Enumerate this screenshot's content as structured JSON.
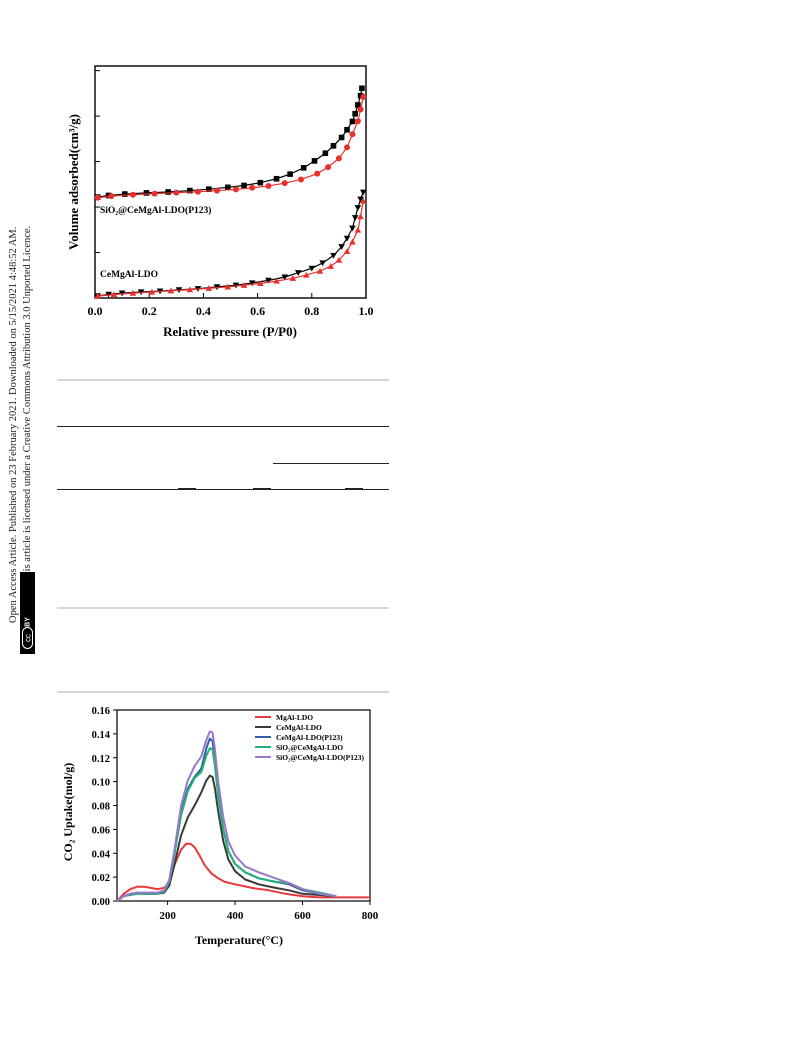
{
  "sidebar": {
    "line1": "Open Access Article. Published on 23 February 2021. Downloaded on 5/15/2021 4:48:52 AM.",
    "line2": "This article is licensed under a Creative Commons Attribution 3.0 Unported Licence.",
    "badge_cc": "cc",
    "badge_by": "BY"
  },
  "chart_data": [
    {
      "type": "scatter",
      "xlabel": "Relative pressure (P/P0)",
      "ylabel": "Volume adsorbed(cm³/g)",
      "xlim": [
        0.0,
        1.0
      ],
      "xticks": [
        "0.0",
        "0.2",
        "0.4",
        "0.6",
        "0.8",
        "1.0"
      ],
      "ylim": [
        0,
        100
      ],
      "grid": false,
      "annotations": [
        "SiO₂@CeMgAl-LDO(P123)",
        "CeMgAl-LDO"
      ],
      "series": [
        {
          "group": "SiO2@CeMgAl-LDO(P123)",
          "branch": "desorption",
          "color": "#000000",
          "marker": "square",
          "x": [
            0.01,
            0.05,
            0.11,
            0.19,
            0.27,
            0.35,
            0.42,
            0.49,
            0.55,
            0.61,
            0.67,
            0.72,
            0.77,
            0.81,
            0.85,
            0.88,
            0.91,
            0.93,
            0.95,
            0.96,
            0.97,
            0.98,
            0.985
          ],
          "y": [
            43.5,
            44.2,
            44.8,
            45.3,
            45.7,
            46.3,
            46.9,
            47.7,
            48.5,
            49.7,
            51.4,
            53.4,
            56.1,
            59.1,
            62.4,
            65.6,
            69.2,
            72.5,
            76.1,
            79.4,
            83.2,
            87.2,
            90.4
          ]
        },
        {
          "group": "SiO2@CeMgAl-LDO(P123)",
          "branch": "adsorption",
          "color": "#e8312d",
          "marker": "circle",
          "x": [
            0.01,
            0.06,
            0.14,
            0.22,
            0.3,
            0.38,
            0.45,
            0.52,
            0.58,
            0.64,
            0.7,
            0.76,
            0.82,
            0.86,
            0.9,
            0.93,
            0.95,
            0.97,
            0.98,
            0.99
          ],
          "y": [
            43.2,
            43.9,
            44.5,
            45.0,
            45.4,
            45.8,
            46.3,
            46.8,
            47.5,
            48.3,
            49.5,
            51.1,
            53.6,
            56.4,
            60.2,
            64.9,
            70.6,
            76.2,
            81.3,
            86.7
          ]
        },
        {
          "group": "CeMgAl-LDO",
          "branch": "desorption",
          "color": "#000000",
          "marker": "triangle-down",
          "x": [
            0.01,
            0.05,
            0.1,
            0.17,
            0.24,
            0.31,
            0.38,
            0.45,
            0.52,
            0.58,
            0.64,
            0.7,
            0.75,
            0.8,
            0.84,
            0.88,
            0.91,
            0.93,
            0.95,
            0.96,
            0.97,
            0.98,
            0.99
          ],
          "y": [
            0.9,
            1.6,
            2.1,
            2.6,
            3.0,
            3.5,
            4.0,
            4.8,
            5.5,
            6.5,
            7.6,
            9.0,
            10.9,
            12.8,
            15.1,
            18.3,
            22.1,
            25.7,
            30.1,
            34.6,
            38.9,
            42.6,
            45.6
          ]
        },
        {
          "group": "CeMgAl-LDO",
          "branch": "adsorption",
          "color": "#e8312d",
          "marker": "triangle-up",
          "x": [
            0.01,
            0.07,
            0.14,
            0.21,
            0.28,
            0.35,
            0.42,
            0.49,
            0.55,
            0.61,
            0.67,
            0.73,
            0.78,
            0.83,
            0.87,
            0.9,
            0.93,
            0.95,
            0.97,
            0.98,
            0.99
          ],
          "y": [
            0.8,
            1.5,
            2.1,
            2.6,
            3.1,
            3.6,
            4.2,
            4.8,
            5.5,
            6.3,
            7.3,
            8.5,
            9.9,
            11.6,
            13.7,
            16.3,
            20.1,
            24.2,
            29.3,
            35.1,
            41.8
          ]
        }
      ]
    },
    {
      "type": "line",
      "xlabel": "Temperature(°C)",
      "ylabel": "CO₂ Uptake(mol/g)",
      "xlim": [
        50,
        800
      ],
      "xticks": [
        "200",
        "400",
        "600",
        "800"
      ],
      "ylim": [
        0,
        0.16
      ],
      "yticks": [
        "0.00",
        "0.02",
        "0.04",
        "0.06",
        "0.08",
        "0.10",
        "0.12",
        "0.14",
        "0.16"
      ],
      "grid": false,
      "legend_position": "top-right",
      "series": [
        {
          "name": "MgAl-LDO",
          "color": "#e8393b",
          "x": [
            50,
            70,
            90,
            110,
            130,
            150,
            170,
            190,
            205,
            220,
            240,
            255,
            268,
            280,
            295,
            310,
            330,
            350,
            370,
            400,
            450,
            500,
            550,
            600,
            650,
            700,
            750,
            800
          ],
          "y": [
            0.0,
            0.006,
            0.01,
            0.012,
            0.012,
            0.011,
            0.01,
            0.011,
            0.016,
            0.03,
            0.043,
            0.048,
            0.048,
            0.045,
            0.038,
            0.03,
            0.023,
            0.019,
            0.016,
            0.014,
            0.011,
            0.009,
            0.006,
            0.004,
            0.003,
            0.003,
            0.003,
            0.003
          ]
        },
        {
          "name": "CeMgAl-LDO",
          "color": "#3a3a3a",
          "x": [
            50,
            70,
            90,
            110,
            130,
            150,
            170,
            190,
            205,
            220,
            240,
            260,
            280,
            300,
            315,
            325,
            333,
            340,
            350,
            365,
            380,
            400,
            430,
            470,
            520,
            560,
            600,
            650,
            700
          ],
          "y": [
            0.0,
            0.004,
            0.006,
            0.007,
            0.006,
            0.006,
            0.006,
            0.007,
            0.013,
            0.03,
            0.055,
            0.07,
            0.08,
            0.091,
            0.101,
            0.105,
            0.104,
            0.095,
            0.075,
            0.05,
            0.035,
            0.025,
            0.018,
            0.014,
            0.011,
            0.009,
            0.006,
            0.005,
            0.004
          ]
        },
        {
          "name": "CeMgAl-LDO(P123)",
          "color": "#2f5fa4",
          "x": [
            50,
            70,
            90,
            110,
            130,
            150,
            170,
            190,
            205,
            220,
            240,
            260,
            280,
            300,
            315,
            325,
            333,
            340,
            350,
            365,
            380,
            400,
            430,
            470,
            520,
            560,
            600,
            650,
            700
          ],
          "y": [
            0.0,
            0.004,
            0.006,
            0.006,
            0.006,
            0.006,
            0.006,
            0.008,
            0.016,
            0.04,
            0.075,
            0.094,
            0.104,
            0.111,
            0.128,
            0.136,
            0.134,
            0.118,
            0.09,
            0.06,
            0.042,
            0.031,
            0.024,
            0.019,
            0.016,
            0.014,
            0.009,
            0.006,
            0.004
          ]
        },
        {
          "name": "SiO₂@CeMgAl-LDO",
          "color": "#22b07a",
          "x": [
            50,
            70,
            90,
            110,
            130,
            150,
            170,
            190,
            205,
            220,
            240,
            260,
            280,
            300,
            315,
            325,
            333,
            340,
            350,
            365,
            380,
            400,
            430,
            470,
            520,
            560,
            600,
            650,
            700
          ],
          "y": [
            0.0,
            0.004,
            0.005,
            0.006,
            0.006,
            0.006,
            0.006,
            0.008,
            0.016,
            0.038,
            0.072,
            0.092,
            0.103,
            0.108,
            0.122,
            0.128,
            0.127,
            0.114,
            0.088,
            0.06,
            0.042,
            0.031,
            0.024,
            0.019,
            0.016,
            0.015,
            0.01,
            0.007,
            0.004
          ]
        },
        {
          "name": "SiO₂@CeMgAl-LDO(P123)",
          "color": "#9b78c6",
          "x": [
            50,
            70,
            90,
            110,
            130,
            150,
            170,
            190,
            205,
            220,
            240,
            260,
            280,
            300,
            315,
            325,
            333,
            340,
            350,
            365,
            380,
            400,
            430,
            470,
            520,
            560,
            600,
            650,
            700
          ],
          "y": [
            0.0,
            0.004,
            0.006,
            0.007,
            0.007,
            0.007,
            0.007,
            0.009,
            0.018,
            0.042,
            0.08,
            0.101,
            0.113,
            0.121,
            0.135,
            0.142,
            0.141,
            0.128,
            0.1,
            0.07,
            0.05,
            0.038,
            0.029,
            0.024,
            0.019,
            0.015,
            0.01,
            0.006,
            0.004
          ]
        }
      ]
    }
  ]
}
